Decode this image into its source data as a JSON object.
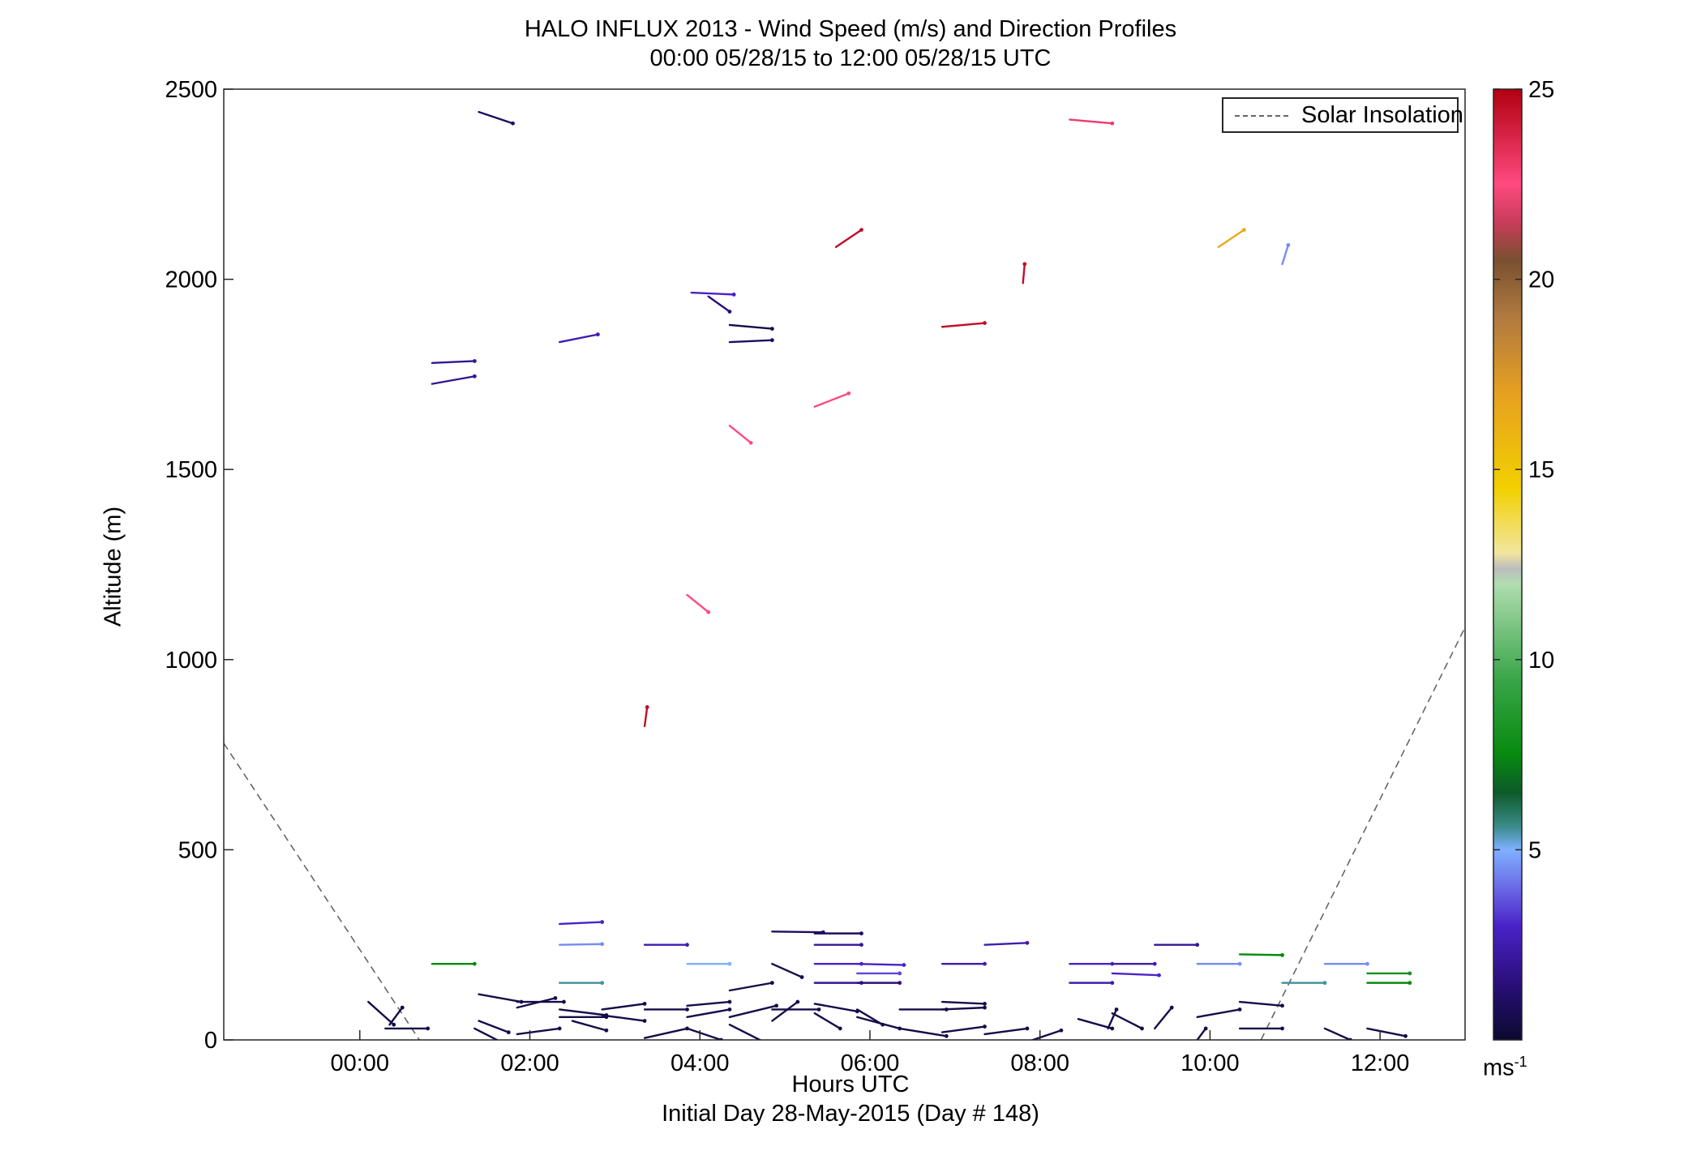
{
  "chart_data": {
    "type": "wind_barb_profile",
    "title": "HALO INFLUX 2013 - Wind Speed (m/s) and Direction Profiles",
    "subtitle": "00:00 05/28/15 to 12:00 05/28/15  UTC",
    "xlabel": "Hours UTC",
    "xlabel_sub": "Initial Day 28-May-2015 (Day # 148)",
    "ylabel": "Altitude (m)",
    "xlim": [
      -1.6,
      13
    ],
    "ylim": [
      0,
      2500
    ],
    "x_ticks": [
      0,
      2,
      4,
      6,
      8,
      10,
      12
    ],
    "x_tick_labels": [
      "00:00",
      "02:00",
      "04:00",
      "06:00",
      "08:00",
      "10:00",
      "12:00"
    ],
    "y_ticks": [
      0,
      500,
      1000,
      1500,
      2000,
      2500
    ],
    "y_tick_labels": [
      "0",
      "500",
      "1000",
      "1500",
      "2000",
      "2500"
    ],
    "legend": {
      "label": "Solar Insolation",
      "position": "top-right",
      "style": "dashed gray line"
    },
    "colorbar": {
      "min": 0,
      "max": 25,
      "ticks": [
        5,
        10,
        15,
        20,
        25
      ],
      "tick_labels": [
        "5",
        "10",
        "15",
        "20",
        "25"
      ],
      "unit": "ms",
      "unit_exp": "-1",
      "stops": [
        {
          "v": 0,
          "c": "#0a0a30"
        },
        {
          "v": 1.5,
          "c": "#2a0f7a"
        },
        {
          "v": 3,
          "c": "#4a22c8"
        },
        {
          "v": 4,
          "c": "#6a6ae6"
        },
        {
          "v": 5,
          "c": "#7fb0ff"
        },
        {
          "v": 5.6,
          "c": "#3c8c8c"
        },
        {
          "v": 6.5,
          "c": "#0d5a2a"
        },
        {
          "v": 7.5,
          "c": "#078a0f"
        },
        {
          "v": 9.5,
          "c": "#3aa64a"
        },
        {
          "v": 12,
          "c": "#b0ddb0"
        },
        {
          "v": 12.4,
          "c": "#bcbcbc"
        },
        {
          "v": 12.8,
          "c": "#f2e6a0"
        },
        {
          "v": 14.5,
          "c": "#f2d000"
        },
        {
          "v": 17,
          "c": "#e6a020"
        },
        {
          "v": 19,
          "c": "#b07a40"
        },
        {
          "v": 20.5,
          "c": "#7a5030"
        },
        {
          "v": 21.5,
          "c": "#c83c5a"
        },
        {
          "v": 22.5,
          "c": "#ff4a80"
        },
        {
          "v": 25,
          "c": "#b00010"
        }
      ]
    },
    "solar_insolation": [
      {
        "x": [
          -1.6,
          0.7
        ],
        "y": [
          780,
          0
        ]
      },
      {
        "x": [
          10.6,
          13.0
        ],
        "y": [
          0,
          1085
        ]
      }
    ],
    "barbs": [
      {
        "x": 0.3,
        "y": 30,
        "dx": 0.5,
        "dy": 0,
        "speed": 0.5
      },
      {
        "x": 0.1,
        "y": 100,
        "dx": 0.3,
        "dy": -60,
        "speed": 0.5
      },
      {
        "x": 0.35,
        "y": 40,
        "dx": 0.15,
        "dy": 45,
        "speed": 0.5
      },
      {
        "x": 0.85,
        "y": 200,
        "dx": 0.5,
        "dy": 0,
        "speed": 7.5
      },
      {
        "x": 1.4,
        "y": 120,
        "dx": 0.5,
        "dy": -20,
        "speed": 0.5
      },
      {
        "x": 1.4,
        "y": 50,
        "dx": 0.35,
        "dy": -30,
        "speed": 0.5
      },
      {
        "x": 1.35,
        "y": 30,
        "dx": 0.35,
        "dy": -40,
        "speed": 0.5
      },
      {
        "x": 1.85,
        "y": 100,
        "dx": 0.55,
        "dy": 0,
        "speed": 0.5
      },
      {
        "x": 1.85,
        "y": 85,
        "dx": 0.45,
        "dy": 25,
        "speed": 0.5
      },
      {
        "x": 1.85,
        "y": 15,
        "dx": 0.5,
        "dy": 15,
        "speed": 0.5
      },
      {
        "x": 2.35,
        "y": 305,
        "dx": 0.5,
        "dy": 5,
        "speed": 3
      },
      {
        "x": 2.35,
        "y": 250,
        "dx": 0.5,
        "dy": 2,
        "speed": 4.5
      },
      {
        "x": 2.35,
        "y": 150,
        "dx": 0.5,
        "dy": 0,
        "speed": 5.5
      },
      {
        "x": 2.35,
        "y": 80,
        "dx": 0.55,
        "dy": -15,
        "speed": 0.5
      },
      {
        "x": 2.35,
        "y": 60,
        "dx": 0.55,
        "dy": 0,
        "speed": 0.5
      },
      {
        "x": 2.5,
        "y": 50,
        "dx": 0.4,
        "dy": -25,
        "speed": 0.5
      },
      {
        "x": 2.85,
        "y": 80,
        "dx": 0.5,
        "dy": 15,
        "speed": 0.5
      },
      {
        "x": 2.85,
        "y": 65,
        "dx": 0.5,
        "dy": -15,
        "speed": 0.5
      },
      {
        "x": 3.35,
        "y": 250,
        "dx": 0.5,
        "dy": 0,
        "speed": 2.5
      },
      {
        "x": 3.35,
        "y": 80,
        "dx": 0.5,
        "dy": 0,
        "speed": 0.5
      },
      {
        "x": 3.35,
        "y": 5,
        "dx": 0.5,
        "dy": 25,
        "speed": 0.5
      },
      {
        "x": 3.85,
        "y": 200,
        "dx": 0.5,
        "dy": 0,
        "speed": 5
      },
      {
        "x": 3.85,
        "y": 90,
        "dx": 0.5,
        "dy": 10,
        "speed": 0.5
      },
      {
        "x": 3.85,
        "y": 60,
        "dx": 0.5,
        "dy": 20,
        "speed": 0.5
      },
      {
        "x": 3.85,
        "y": 30,
        "dx": 0.4,
        "dy": -30,
        "speed": 0.5
      },
      {
        "x": 4.35,
        "y": 130,
        "dx": 0.5,
        "dy": 20,
        "speed": 0.5
      },
      {
        "x": 4.35,
        "y": 60,
        "dx": 0.55,
        "dy": 30,
        "speed": 0.5
      },
      {
        "x": 4.35,
        "y": 40,
        "dx": 0.4,
        "dy": -45,
        "speed": 0.5
      },
      {
        "x": 4.85,
        "y": 285,
        "dx": 0.6,
        "dy": -2,
        "speed": 1
      },
      {
        "x": 4.85,
        "y": 200,
        "dx": 0.35,
        "dy": -35,
        "speed": 0.5
      },
      {
        "x": 4.85,
        "y": 80,
        "dx": 0.55,
        "dy": 0,
        "speed": 0.5
      },
      {
        "x": 4.85,
        "y": 50,
        "dx": 0.3,
        "dy": 50,
        "speed": 0.5
      },
      {
        "x": 5.35,
        "y": 280,
        "dx": 0.55,
        "dy": 0,
        "speed": 1
      },
      {
        "x": 5.35,
        "y": 250,
        "dx": 0.55,
        "dy": 0,
        "speed": 2
      },
      {
        "x": 5.35,
        "y": 200,
        "dx": 0.55,
        "dy": 0,
        "speed": 3
      },
      {
        "x": 5.35,
        "y": 150,
        "dx": 0.55,
        "dy": 0,
        "speed": 2
      },
      {
        "x": 5.35,
        "y": 95,
        "dx": 0.5,
        "dy": -20,
        "speed": 0.5
      },
      {
        "x": 5.35,
        "y": 70,
        "dx": 0.3,
        "dy": -40,
        "speed": 0.5
      },
      {
        "x": 5.85,
        "y": 200,
        "dx": 0.55,
        "dy": -3,
        "speed": 3
      },
      {
        "x": 5.85,
        "y": 175,
        "dx": 0.5,
        "dy": 0,
        "speed": 3.5
      },
      {
        "x": 5.85,
        "y": 150,
        "dx": 0.5,
        "dy": 0,
        "speed": 1.5
      },
      {
        "x": 5.85,
        "y": 80,
        "dx": 0.3,
        "dy": -40,
        "speed": 0.5
      },
      {
        "x": 5.85,
        "y": 60,
        "dx": 0.5,
        "dy": -30,
        "speed": 0.5
      },
      {
        "x": 6.35,
        "y": 80,
        "dx": 0.55,
        "dy": 0,
        "speed": 0.5
      },
      {
        "x": 6.35,
        "y": 30,
        "dx": 0.55,
        "dy": -20,
        "speed": 0.5
      },
      {
        "x": 6.85,
        "y": 200,
        "dx": 0.5,
        "dy": 0,
        "speed": 2.5
      },
      {
        "x": 6.85,
        "y": 100,
        "dx": 0.5,
        "dy": -5,
        "speed": 0.5
      },
      {
        "x": 6.85,
        "y": 80,
        "dx": 0.5,
        "dy": 5,
        "speed": 0.5
      },
      {
        "x": 6.85,
        "y": 20,
        "dx": 0.5,
        "dy": 15,
        "speed": 0.5
      },
      {
        "x": 7.35,
        "y": 250,
        "dx": 0.5,
        "dy": 5,
        "speed": 2.5
      },
      {
        "x": 7.35,
        "y": 15,
        "dx": 0.5,
        "dy": 15,
        "speed": 0.5
      },
      {
        "x": 7.85,
        "y": -5,
        "dx": 0.4,
        "dy": 30,
        "speed": 0.5
      },
      {
        "x": 8.35,
        "y": 200,
        "dx": 0.5,
        "dy": 0,
        "speed": 3
      },
      {
        "x": 8.35,
        "y": 150,
        "dx": 0.5,
        "dy": 0,
        "speed": 2.5
      },
      {
        "x": 8.45,
        "y": 55,
        "dx": 0.4,
        "dy": -25,
        "speed": 0.5
      },
      {
        "x": 8.8,
        "y": 30,
        "dx": 0.1,
        "dy": 50,
        "speed": 0.5
      },
      {
        "x": 8.85,
        "y": 200,
        "dx": 0.5,
        "dy": 0,
        "speed": 2.5
      },
      {
        "x": 8.85,
        "y": 175,
        "dx": 0.55,
        "dy": -5,
        "speed": 3
      },
      {
        "x": 8.85,
        "y": 70,
        "dx": 0.35,
        "dy": -40,
        "speed": 0.5
      },
      {
        "x": 9.35,
        "y": 250,
        "dx": 0.5,
        "dy": 0,
        "speed": 2
      },
      {
        "x": 9.35,
        "y": 30,
        "dx": 0.2,
        "dy": 55,
        "speed": 0.5
      },
      {
        "x": 9.85,
        "y": 200,
        "dx": 0.5,
        "dy": 0,
        "speed": 4.5
      },
      {
        "x": 9.85,
        "y": 0,
        "dx": 0.1,
        "dy": 30,
        "speed": 0.5
      },
      {
        "x": 9.85,
        "y": 60,
        "dx": 0.5,
        "dy": 20,
        "speed": 0.5
      },
      {
        "x": 10.35,
        "y": 225,
        "dx": 0.5,
        "dy": -2,
        "speed": 7.5
      },
      {
        "x": 10.35,
        "y": 100,
        "dx": 0.5,
        "dy": -10,
        "speed": 0.5
      },
      {
        "x": 10.35,
        "y": 30,
        "dx": 0.5,
        "dy": 0,
        "speed": 0.5
      },
      {
        "x": 10.85,
        "y": 150,
        "dx": 0.5,
        "dy": 0,
        "speed": 5.5
      },
      {
        "x": 11.35,
        "y": 200,
        "dx": 0.5,
        "dy": 0,
        "speed": 4.5
      },
      {
        "x": 11.35,
        "y": 30,
        "dx": 0.3,
        "dy": -30,
        "speed": 0.5
      },
      {
        "x": 11.85,
        "y": 175,
        "dx": 0.5,
        "dy": 0,
        "speed": 8
      },
      {
        "x": 11.85,
        "y": 150,
        "dx": 0.5,
        "dy": 0,
        "speed": 7.5
      },
      {
        "x": 11.85,
        "y": 30,
        "dx": 0.45,
        "dy": -20,
        "speed": 0.5
      },
      {
        "x": 1.4,
        "y": 2440,
        "dx": 0.4,
        "dy": -30,
        "speed": 1
      },
      {
        "x": 0.85,
        "y": 1780,
        "dx": 0.5,
        "dy": 5,
        "speed": 2
      },
      {
        "x": 0.85,
        "y": 1725,
        "dx": 0.5,
        "dy": 20,
        "speed": 2
      },
      {
        "x": 2.35,
        "y": 1835,
        "dx": 0.45,
        "dy": 20,
        "speed": 2.5
      },
      {
        "x": 3.9,
        "y": 1965,
        "dx": 0.5,
        "dy": -5,
        "speed": 3
      },
      {
        "x": 4.1,
        "y": 1955,
        "dx": 0.25,
        "dy": -40,
        "speed": 1.5
      },
      {
        "x": 4.35,
        "y": 1880,
        "dx": 0.5,
        "dy": -10,
        "speed": 0.5
      },
      {
        "x": 4.35,
        "y": 1835,
        "dx": 0.5,
        "dy": 5,
        "speed": 1
      },
      {
        "x": 3.35,
        "y": 825,
        "dx": 0.03,
        "dy": 50,
        "speed": 24.5
      },
      {
        "x": 3.85,
        "y": 1170,
        "dx": 0.25,
        "dy": -45,
        "speed": 22.5
      },
      {
        "x": 4.35,
        "y": 1615,
        "dx": 0.25,
        "dy": -45,
        "speed": 22.5
      },
      {
        "x": 5.35,
        "y": 1665,
        "dx": 0.4,
        "dy": 35,
        "speed": 22.5
      },
      {
        "x": 5.6,
        "y": 2085,
        "dx": 0.3,
        "dy": 45,
        "speed": 24.5
      },
      {
        "x": 6.85,
        "y": 1875,
        "dx": 0.5,
        "dy": 10,
        "speed": 24.5
      },
      {
        "x": 7.8,
        "y": 1990,
        "dx": 0.02,
        "dy": 50,
        "speed": 24.5
      },
      {
        "x": 8.35,
        "y": 2420,
        "dx": 0.5,
        "dy": -10,
        "speed": 23
      },
      {
        "x": 10.1,
        "y": 2085,
        "dx": 0.3,
        "dy": 45,
        "speed": 16.5
      },
      {
        "x": 10.85,
        "y": 2040,
        "dx": 0.07,
        "dy": 50,
        "speed": 4.5
      }
    ]
  }
}
